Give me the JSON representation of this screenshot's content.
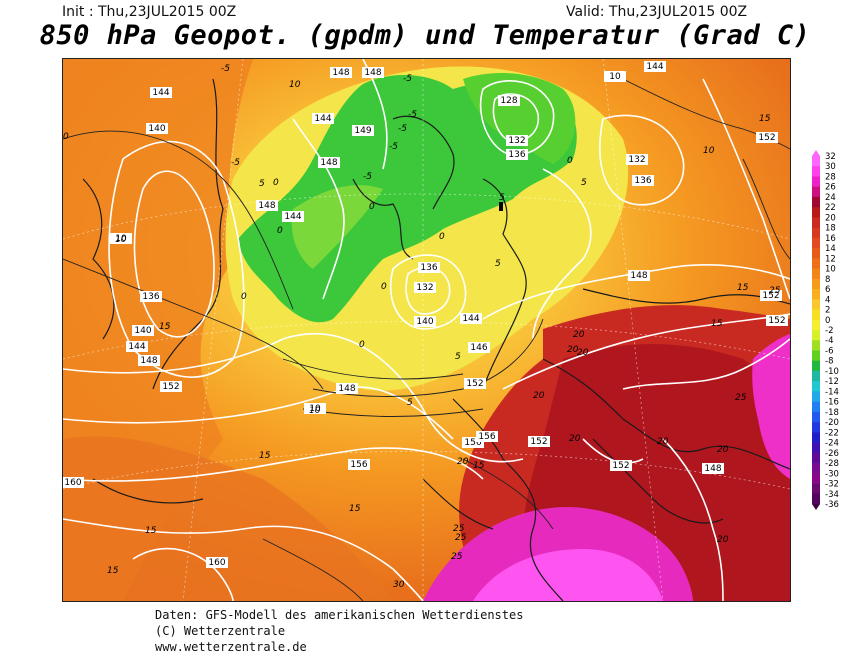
{
  "header": {
    "init": "Init : Thu,23JUL2015 00Z",
    "valid": "Valid: Thu,23JUL2015 00Z",
    "title": "850 hPa Geopot. (gpdm) und Temperatur (Grad C)"
  },
  "legend": {
    "values": [
      "32",
      "30",
      "28",
      "26",
      "24",
      "22",
      "20",
      "18",
      "16",
      "14",
      "12",
      "10",
      "8",
      "6",
      "4",
      "2",
      "0",
      "-2",
      "-4",
      "-6",
      "-8",
      "-10",
      "-12",
      "-14",
      "-16",
      "-18",
      "-20",
      "-22",
      "-24",
      "-26",
      "-28",
      "-30",
      "-32",
      "-34",
      "-36"
    ],
    "colors": [
      "#ff66ff",
      "#ff40e8",
      "#ee20c8",
      "#cc1080",
      "#a00830",
      "#b81a1a",
      "#cc2a20",
      "#d83820",
      "#e04a1e",
      "#e85c1a",
      "#ee7018",
      "#f28418",
      "#f59a1a",
      "#f8b020",
      "#fac828",
      "#f8e020",
      "#f2f030",
      "#d8f028",
      "#a0e020",
      "#60d020",
      "#20b840",
      "#20b8a0",
      "#20c8d0",
      "#20a8e8",
      "#2080f0",
      "#2058f0",
      "#2038e0",
      "#2020c8",
      "#4010b0",
      "#600c98",
      "#780c90",
      "#8a0888",
      "#6a0a70",
      "#50065a",
      "#3a0440"
    ]
  },
  "map_labels": {
    "geopotential": [
      "144",
      "140",
      "148",
      "148",
      "149",
      "144",
      "148",
      "148",
      "136",
      "140",
      "144",
      "148",
      "152",
      "148",
      "156",
      "160",
      "160",
      "144",
      "128",
      "132",
      "136",
      "132",
      "136",
      "132",
      "140",
      "136",
      "144",
      "148",
      "152",
      "146",
      "152",
      "156",
      "156",
      "152",
      "152",
      "152",
      "152",
      "148",
      "144",
      "10",
      "10",
      "10"
    ],
    "temperature": [
      "-5",
      "-5",
      "-5",
      "-5",
      "-5",
      "-5",
      "-5",
      "0",
      "0",
      "0",
      "0",
      "0",
      "0",
      "0",
      "0",
      "0",
      "5",
      "5",
      "5",
      "5",
      "5",
      "5",
      "10",
      "10",
      "10",
      "10",
      "15",
      "15",
      "15",
      "15",
      "15",
      "15",
      "15",
      "15",
      "15",
      "20",
      "20",
      "20",
      "20",
      "20",
      "20",
      "20",
      "20",
      "20",
      "25",
      "25",
      "25",
      "25",
      "25",
      "30"
    ]
  },
  "footer": {
    "line1": "Daten: GFS-Modell des amerikanischen Wetterdienstes",
    "line2": "(C) Wetterzentrale",
    "line3": "www.wetterzentrale.de"
  }
}
